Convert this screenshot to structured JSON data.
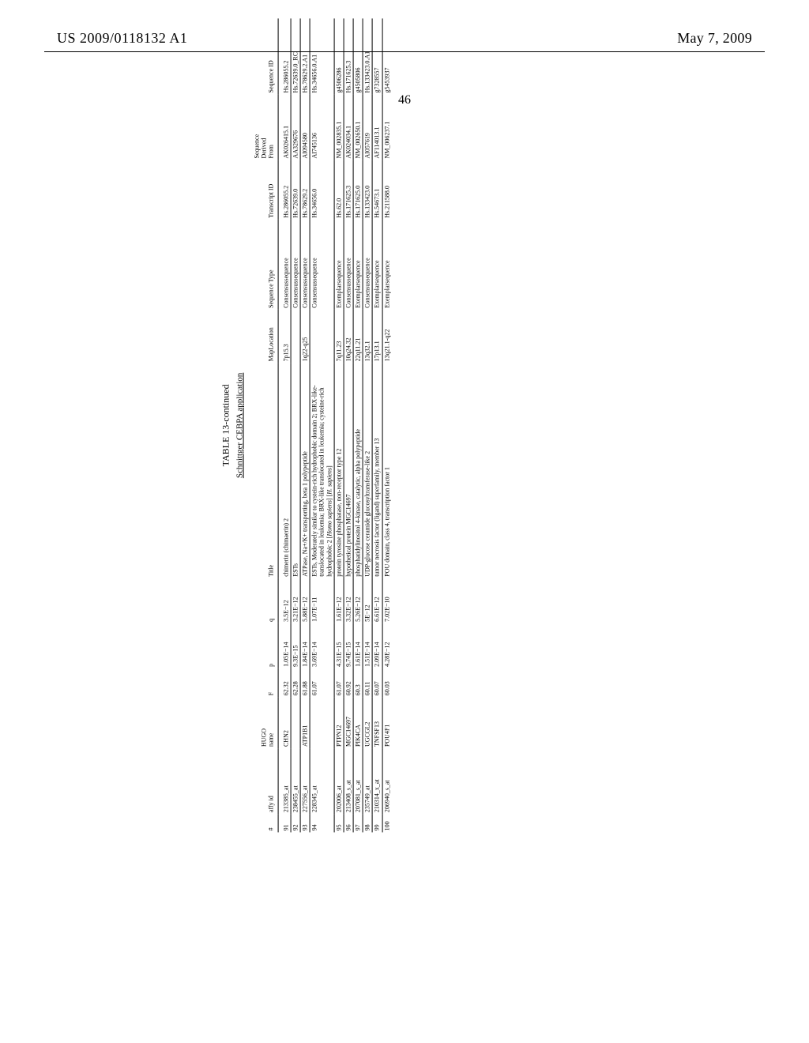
{
  "header": {
    "publication_number": "US 2009/0118132 A1",
    "date": "May 7, 2009"
  },
  "page_number": "46",
  "table": {
    "caption": "TABLE 13-continued",
    "subcaption": "Schnittger CEBPA application",
    "columns": {
      "num": "#",
      "affy": "affy id",
      "hugo": "HUGO\nname",
      "f": "F",
      "p": "p",
      "q": "q",
      "title": "Title",
      "maploc": "MapLocation",
      "seqtype": "Sequence Type",
      "transid": "Transcript ID",
      "sdf": "Sequence\nDerived\nFrom",
      "seqid": "Sequence ID"
    },
    "rows": [
      {
        "num": "91",
        "affy": "213385_at",
        "hugo": "CHN2",
        "f": "62.32",
        "p": "1.05E−14",
        "q": "3.5E−12",
        "title": "chimerin (chimaerin) 2",
        "maploc": "7p15.3",
        "seqtype": "Consensussequence",
        "transid": "Hs.286055.2",
        "sdf": "AK026415.1",
        "seqid": "Hs.286055.2"
      },
      {
        "num": "92",
        "affy": "238455_at",
        "hugo": "",
        "f": "62.28",
        "p": "9.3E−15",
        "q": "3.21E−12",
        "title": "ESTs",
        "maploc": "",
        "seqtype": "Consensussequence",
        "transid": "Hs.72639.0",
        "sdf": "AA329676",
        "seqid": "Hs.72639.0_RC"
      },
      {
        "num": "93",
        "affy": "227556_at",
        "hugo": "ATP1B1",
        "f": "61.88",
        "p": "1.84E−14",
        "q": "5.88E−12",
        "title": "ATPase, Na+/K+ transporting, beta 1 polypeptide",
        "maploc": "1q22-q25",
        "seqtype": "Consensussequence",
        "transid": "Hs.78629.2",
        "sdf": "AI094580",
        "seqid": "Hs.78629.2.A1"
      },
      {
        "num": "94",
        "affy": "228345_at",
        "hugo": "",
        "f": "61.07",
        "p": "3.69E−14",
        "q": "1.07E−11",
        "title": "ESTs, Moderately similar to cystein-rich hydrophobic domain 2; BRX-like-translocated in leukemia; BRX-like translocated in leukemia; cysteine-rich hydrophobic 2 [<i>Homo sapiens</i>] [<i>H. sapiens</i>]",
        "maploc": "",
        "seqtype": "Consensussequence",
        "transid": "Hs.34656.0",
        "sdf": "AI745136",
        "seqid": "Hs.34656.0.A1"
      },
      {
        "num": "95",
        "affy": "202006_at",
        "hugo": "PTPN12",
        "f": "61.07",
        "p": "4.31E−15",
        "q": "1.61E−12",
        "title": "protein tyrosine phosphatase, non-receptor type 12",
        "maploc": "7q11.23",
        "seqtype": "Exemplarsequence",
        "transid": "Hs.62.0",
        "sdf": "NM_002835.1",
        "seqid": "g4506286"
      },
      {
        "num": "96",
        "affy": "213408_s_at",
        "hugo": "MGC14697",
        "f": "60.92",
        "p": "9.74E−15",
        "q": "3.32E−12",
        "title": "hypothetical protein MGC14697",
        "maploc": "10q24.32",
        "seqtype": "Consensussequence",
        "transid": "Hs.171625.3",
        "sdf": "AK024034.1",
        "seqid": "Hs.171625.3"
      },
      {
        "num": "97",
        "affy": "207081_s_at",
        "hugo": "PIK4CA",
        "f": "60.3",
        "p": "1.61E−14",
        "q": "5.26E−12",
        "title": "phosphatidylinositol 4-kinase, catalytic, alpha polypeptide",
        "maploc": "22q11.21",
        "seqtype": "Exemplarsequence",
        "transid": "Hs.171625.0",
        "sdf": "NM_002650.1",
        "seqid": "g4505806"
      },
      {
        "num": "98",
        "affy": "235749_at",
        "hugo": "UGCGL2",
        "f": "60.11",
        "p": "1.51E−14",
        "q": "5E−12",
        "title": "UDP-glucose ceramide glucosyltransferase-like 2",
        "maploc": "13q32.1",
        "seqtype": "Consensussequence",
        "transid": "Hs.133423.0",
        "sdf": "AI057619",
        "seqid": "Hs.133423.0.A1"
      },
      {
        "num": "99",
        "affy": "210314_x_at",
        "hugo": "TNFSF13",
        "f": "60.07",
        "p": "2.09E−14",
        "q": "6.61E−12",
        "title": "tumor necrosis factor (ligand) superfamily, member 13",
        "maploc": "17p13.1",
        "seqtype": "Exemplarsequence",
        "transid": "Hs.54673.1",
        "sdf": "AF114013.1",
        "seqid": "g7328557"
      },
      {
        "num": "100",
        "affy": "206940_s_at",
        "hugo": "POU4F1",
        "f": "60.03",
        "p": "4.28E−12",
        "q": "7.02E−10",
        "title": "POU domain, class 4, transcription factor 1",
        "maploc": "13q21.1-q22",
        "seqtype": "Exemplarsequence",
        "transid": "Hs.211588.0",
        "sdf": "NM_006237.1",
        "seqid": "g5453937"
      }
    ]
  }
}
